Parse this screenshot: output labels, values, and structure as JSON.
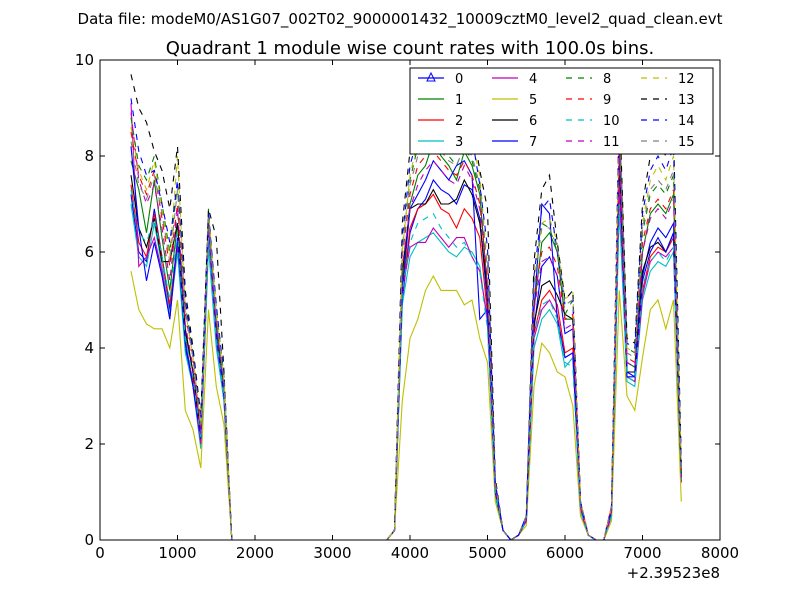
{
  "figure": {
    "suptitle": "Data file: modeM0/AS1G07_002T02_9000001432_10009cztM0_level2_quad_clean.evt"
  },
  "chart_data": {
    "type": "line",
    "title": "Quadrant 1 module wise count rates with 100.0s bins.",
    "xlabel": "",
    "ylabel": "",
    "x_offset_label": "+2.39523e8",
    "xlim": [
      0,
      8000
    ],
    "ylim": [
      0,
      10
    ],
    "xticks": [
      0,
      1000,
      2000,
      3000,
      4000,
      5000,
      6000,
      7000,
      8000
    ],
    "yticks": [
      0,
      2,
      4,
      6,
      8,
      10
    ],
    "grid": false,
    "legend": {
      "placement": "top-right",
      "columns": 4
    },
    "x": [
      400,
      500,
      600,
      700,
      800,
      900,
      1000,
      1100,
      1200,
      1300,
      1400,
      1500,
      1600,
      1700,
      1800,
      3700,
      3800,
      3900,
      4000,
      4100,
      4200,
      4300,
      4400,
      4500,
      4600,
      4700,
      4800,
      4900,
      5000,
      5100,
      5200,
      5300,
      5400,
      5500,
      5600,
      5700,
      5800,
      5900,
      6000,
      6100,
      6200,
      6300,
      6400,
      6500,
      6600,
      6700,
      6800,
      6900,
      7000,
      7100,
      7200,
      7300,
      7400,
      7500
    ],
    "series": [
      {
        "name": "0",
        "color": "#0000ff",
        "dash": "solid",
        "marker": "triangle",
        "values": [
          7.2,
          6.0,
          5.8,
          6.9,
          5.9,
          4.8,
          6.1,
          4.0,
          3.3,
          2.0,
          6.3,
          4.1,
          2.9,
          0,
          0,
          0,
          0.2,
          5.0,
          6.4,
          6.9,
          7.1,
          7.5,
          7.3,
          7.2,
          7.0,
          7.4,
          7.3,
          6.7,
          4.9,
          1.0,
          0.2,
          0,
          0.1,
          0.4,
          4.4,
          5.7,
          5.9,
          5.5,
          4.3,
          4.4,
          0.7,
          0.1,
          0,
          0,
          0.6,
          7.6,
          3.5,
          3.4,
          5.5,
          6.2,
          6.5,
          6.3,
          6.6,
          1.3
        ]
      },
      {
        "name": "1",
        "color": "#008000",
        "dash": "solid",
        "marker": "none",
        "values": [
          7.9,
          7.3,
          6.4,
          7.5,
          6.3,
          5.2,
          6.6,
          4.3,
          3.5,
          2.1,
          6.6,
          4.4,
          3.1,
          0,
          0,
          0,
          0.2,
          5.4,
          7.0,
          7.6,
          7.8,
          8.3,
          8.0,
          7.8,
          7.5,
          8.1,
          7.8,
          7.2,
          5.2,
          1.1,
          0.2,
          0,
          0.1,
          0.4,
          4.8,
          6.2,
          6.4,
          6.0,
          4.6,
          4.6,
          0.7,
          0.1,
          0,
          0,
          0.6,
          8.1,
          3.7,
          3.6,
          6.0,
          6.8,
          7.0,
          6.8,
          7.2,
          1.4
        ]
      },
      {
        "name": "2",
        "color": "#ff0000",
        "dash": "solid",
        "marker": "none",
        "values": [
          7.4,
          6.2,
          5.9,
          6.8,
          5.9,
          4.9,
          6.2,
          4.1,
          3.3,
          2.0,
          6.2,
          4.2,
          3.0,
          0,
          0,
          0,
          0.2,
          5.1,
          6.5,
          6.9,
          7.0,
          7.2,
          6.9,
          6.8,
          6.5,
          6.9,
          6.7,
          6.3,
          4.7,
          1.0,
          0.2,
          0,
          0.1,
          0.4,
          4.3,
          5.0,
          5.2,
          4.9,
          3.9,
          4.0,
          0.7,
          0.1,
          0,
          0,
          0.6,
          7.2,
          3.4,
          3.3,
          5.2,
          5.9,
          6.1,
          6.0,
          6.3,
          1.2
        ]
      },
      {
        "name": "3",
        "color": "#00bfbf",
        "dash": "solid",
        "marker": "none",
        "values": [
          7.0,
          5.9,
          5.7,
          6.6,
          5.7,
          4.7,
          6.0,
          3.9,
          3.2,
          1.9,
          6.1,
          4.0,
          2.9,
          0,
          0,
          0,
          0.2,
          4.9,
          5.9,
          6.2,
          6.3,
          6.4,
          6.2,
          6.0,
          5.9,
          6.1,
          6.0,
          5.7,
          4.5,
          0.9,
          0.2,
          0,
          0.1,
          0.4,
          4.0,
          4.6,
          4.8,
          4.5,
          3.6,
          3.8,
          0.6,
          0.1,
          0,
          0,
          0.5,
          6.9,
          3.3,
          3.2,
          5.0,
          5.6,
          5.8,
          5.7,
          6.0,
          1.2
        ]
      },
      {
        "name": "4",
        "color": "#bf00bf",
        "dash": "solid",
        "marker": "none",
        "values": [
          9.1,
          5.7,
          5.9,
          6.3,
          5.6,
          4.6,
          6.2,
          4.2,
          3.2,
          2.0,
          6.4,
          4.2,
          3.0,
          0,
          0,
          0,
          0.2,
          5.2,
          6.1,
          6.2,
          6.2,
          6.5,
          6.3,
          6.1,
          6.3,
          6.3,
          5.9,
          5.6,
          4.6,
          1.0,
          0.2,
          0,
          0.1,
          0.4,
          4.2,
          4.8,
          5.0,
          4.7,
          3.8,
          3.9,
          0.6,
          0.1,
          0,
          0,
          0.5,
          7.4,
          3.4,
          3.3,
          5.1,
          5.8,
          6.0,
          5.9,
          6.1,
          1.2
        ]
      },
      {
        "name": "5",
        "color": "#bfbf00",
        "dash": "solid",
        "marker": "none",
        "values": [
          5.6,
          4.8,
          4.5,
          4.4,
          4.4,
          4.0,
          5.0,
          2.7,
          2.3,
          1.5,
          4.8,
          3.2,
          2.4,
          0,
          0,
          0,
          0.2,
          2.9,
          4.2,
          4.6,
          5.2,
          5.5,
          5.2,
          5.2,
          5.2,
          4.9,
          5.0,
          4.2,
          3.7,
          0.8,
          0.2,
          0,
          0.1,
          0.3,
          3.2,
          4.1,
          3.9,
          3.5,
          3.4,
          2.8,
          0.5,
          0.1,
          0,
          0,
          0.4,
          5.2,
          3.0,
          2.7,
          3.8,
          4.8,
          5.0,
          4.4,
          5.0,
          0.8
        ]
      },
      {
        "name": "6",
        "color": "#000000",
        "dash": "solid",
        "marker": "none",
        "values": [
          7.6,
          6.5,
          6.1,
          6.7,
          5.8,
          5.8,
          6.6,
          4.4,
          3.5,
          2.2,
          6.8,
          4.6,
          3.2,
          0,
          0,
          0,
          0.2,
          5.6,
          6.9,
          7.0,
          7.0,
          7.3,
          7.0,
          7.0,
          7.1,
          7.5,
          7.2,
          6.6,
          5.2,
          1.0,
          0.2,
          0,
          0.1,
          0.4,
          4.5,
          5.3,
          5.4,
          5.1,
          4.7,
          4.6,
          0.7,
          0.1,
          0,
          0,
          0.6,
          8.0,
          3.5,
          3.5,
          5.6,
          6.1,
          6.2,
          6.0,
          6.4,
          1.3
        ]
      },
      {
        "name": "7",
        "color": "#0000ff",
        "dash": "solid",
        "marker": "none",
        "values": [
          8.2,
          6.5,
          5.4,
          6.2,
          5.5,
          4.6,
          6.3,
          4.1,
          3.2,
          2.1,
          6.6,
          4.3,
          3.0,
          0,
          0,
          0,
          0.2,
          5.2,
          6.9,
          7.2,
          7.5,
          7.9,
          7.7,
          7.5,
          7.8,
          7.9,
          7.6,
          4.6,
          4.8,
          1.0,
          0.2,
          0,
          0.1,
          0.4,
          4.8,
          7.0,
          6.8,
          4.6,
          3.8,
          3.9,
          0.7,
          0.1,
          0,
          0,
          0.6,
          8.3,
          3.4,
          3.4,
          5.4,
          6.0,
          6.3,
          6.0,
          6.4,
          1.3
        ]
      },
      {
        "name": "8",
        "color": "#008000",
        "dash": "dashed",
        "marker": "none",
        "values": [
          8.8,
          7.8,
          7.5,
          8.0,
          7.0,
          6.0,
          7.4,
          4.9,
          3.9,
          2.4,
          6.9,
          4.8,
          3.4,
          0,
          0,
          0,
          0.2,
          6.1,
          7.5,
          8.2,
          8.4,
          8.6,
          8.3,
          8.0,
          7.8,
          8.2,
          7.9,
          7.3,
          5.6,
          1.2,
          0.2,
          0,
          0.1,
          0.5,
          5.3,
          6.6,
          6.5,
          6.0,
          4.7,
          5.0,
          0.8,
          0.1,
          0,
          0,
          0.7,
          8.5,
          4.0,
          3.9,
          6.4,
          7.2,
          7.4,
          7.2,
          7.6,
          1.4
        ]
      },
      {
        "name": "9",
        "color": "#ff0000",
        "dash": "dashed",
        "marker": "none",
        "values": [
          8.5,
          7.6,
          7.2,
          7.7,
          6.7,
          5.7,
          7.0,
          4.7,
          3.8,
          2.3,
          6.7,
          4.6,
          3.3,
          0,
          0,
          0,
          0.2,
          5.9,
          7.2,
          7.8,
          8.0,
          8.1,
          7.9,
          7.7,
          7.6,
          7.9,
          7.6,
          7.0,
          5.4,
          1.1,
          0.2,
          0,
          0.1,
          0.5,
          5.0,
          6.0,
          6.1,
          5.7,
          4.6,
          4.7,
          0.8,
          0.1,
          0,
          0,
          0.7,
          8.1,
          3.8,
          3.7,
          6.2,
          6.9,
          7.1,
          6.9,
          7.3,
          1.4
        ]
      },
      {
        "name": "10",
        "color": "#00bfbf",
        "dash": "dashed",
        "marker": "none",
        "values": [
          7.3,
          6.4,
          6.2,
          6.7,
          5.9,
          5.0,
          6.4,
          4.2,
          3.4,
          2.1,
          6.3,
          4.2,
          3.0,
          0,
          0,
          0,
          0.2,
          5.2,
          6.2,
          6.6,
          6.7,
          6.8,
          6.5,
          6.3,
          6.1,
          6.2,
          5.9,
          5.6,
          4.4,
          1.0,
          0.2,
          0,
          0.1,
          0.4,
          4.3,
          4.9,
          5.0,
          4.6,
          3.7,
          3.6,
          0.6,
          0.1,
          0,
          0,
          0.5,
          7.0,
          3.4,
          3.3,
          5.3,
          5.8,
          6.0,
          5.8,
          6.1,
          1.2
        ]
      },
      {
        "name": "11",
        "color": "#bf00bf",
        "dash": "dashed",
        "marker": "none",
        "values": [
          8.9,
          7.5,
          7.0,
          7.4,
          6.5,
          5.4,
          6.9,
          4.5,
          3.6,
          2.2,
          6.6,
          4.5,
          3.2,
          0,
          0,
          0,
          0.2,
          5.7,
          6.9,
          7.4,
          7.7,
          7.9,
          7.7,
          7.5,
          7.4,
          7.8,
          7.5,
          6.9,
          5.3,
          1.1,
          0.2,
          0,
          0.1,
          0.4,
          4.8,
          5.8,
          5.9,
          5.5,
          4.4,
          4.5,
          0.7,
          0.1,
          0,
          0,
          0.6,
          8.0,
          3.7,
          3.6,
          6.0,
          6.7,
          6.9,
          6.7,
          7.1,
          1.3
        ]
      },
      {
        "name": "12",
        "color": "#bfbf00",
        "dash": "dashed",
        "marker": "none",
        "values": [
          8.6,
          7.7,
          7.3,
          7.9,
          6.9,
          5.9,
          8.0,
          4.8,
          3.8,
          2.4,
          6.8,
          4.7,
          3.3,
          0,
          0,
          0,
          0.2,
          6.0,
          7.6,
          8.3,
          8.5,
          8.8,
          8.5,
          8.2,
          8.1,
          8.6,
          8.3,
          7.6,
          5.7,
          1.2,
          0.2,
          0,
          0.1,
          0.5,
          5.4,
          6.6,
          6.7,
          6.2,
          5.0,
          5.2,
          0.8,
          0.1,
          0,
          0,
          0.7,
          8.8,
          4.0,
          3.9,
          6.6,
          7.5,
          7.8,
          7.5,
          8.0,
          1.5
        ]
      },
      {
        "name": "13",
        "color": "#000000",
        "dash": "dashed",
        "marker": "none",
        "values": [
          9.7,
          9.0,
          8.7,
          8.1,
          7.7,
          6.9,
          8.2,
          5.2,
          4.0,
          2.6,
          6.9,
          6.3,
          3.5,
          0,
          0,
          0,
          0.2,
          6.6,
          8.1,
          8.7,
          9.0,
          9.2,
          9.0,
          8.7,
          8.6,
          9.1,
          8.7,
          7.7,
          6.9,
          1.3,
          0.2,
          0,
          0.1,
          0.5,
          5.8,
          7.3,
          7.6,
          6.2,
          5.0,
          5.2,
          0.8,
          0.1,
          0,
          0,
          0.7,
          9.2,
          4.2,
          4.1,
          7.0,
          8.0,
          8.3,
          8.0,
          8.5,
          1.6
        ]
      },
      {
        "name": "14",
        "color": "#0000ff",
        "dash": "dashed",
        "marker": "none",
        "values": [
          9.2,
          8.1,
          7.6,
          7.7,
          7.0,
          6.2,
          7.5,
          5.0,
          3.9,
          2.5,
          6.8,
          4.9,
          3.4,
          0,
          0,
          0,
          0.2,
          6.3,
          7.8,
          8.4,
          8.7,
          8.9,
          8.7,
          8.4,
          8.3,
          8.8,
          8.4,
          7.4,
          6.1,
          1.2,
          0.2,
          0,
          0.1,
          0.5,
          5.5,
          6.9,
          7.1,
          6.0,
          4.9,
          5.0,
          0.8,
          0.1,
          0,
          0,
          0.7,
          8.9,
          4.1,
          4.0,
          6.8,
          7.7,
          8.0,
          7.7,
          8.2,
          1.5
        ]
      },
      {
        "name": "15",
        "color": "#808080",
        "dash": "dashed",
        "marker": "none",
        "values": [
          8.3,
          7.4,
          7.1,
          7.6,
          6.8,
          5.8,
          7.3,
          4.8,
          3.8,
          2.4,
          6.7,
          4.7,
          3.3,
          0,
          0,
          0,
          0.2,
          6.0,
          7.4,
          8.0,
          8.3,
          8.4,
          8.1,
          7.9,
          7.8,
          8.2,
          8.0,
          7.4,
          5.6,
          1.2,
          0.2,
          0,
          0.1,
          0.5,
          5.3,
          6.5,
          6.5,
          6.1,
          4.9,
          5.0,
          0.8,
          0.1,
          0,
          0,
          0.7,
          9.0,
          3.9,
          3.8,
          6.5,
          7.3,
          7.5,
          7.3,
          7.7,
          1.4
        ]
      }
    ]
  }
}
